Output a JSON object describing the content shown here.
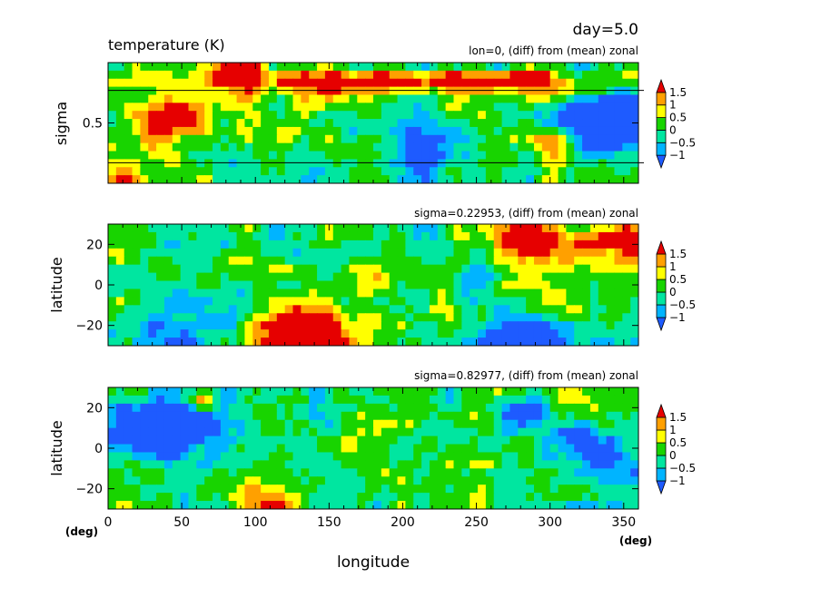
{
  "header": {
    "day_label": "day=5.0",
    "title": "temperature (K)"
  },
  "chart_data": [
    {
      "type": "heatmap",
      "subtitle": "lon=0, (diff) from (mean) zonal",
      "ylabel": "sigma",
      "yticks": [
        {
          "value": 0.5,
          "label": "0.5"
        }
      ],
      "ylim": [
        0.0,
        1.0
      ],
      "xlim": [
        0,
        360
      ],
      "reference_lines_sigma": [
        0.23,
        0.83
      ],
      "colorbar": {
        "levels": [
          "1.5",
          "1",
          "0.5",
          "0",
          "−0.5",
          "−1"
        ]
      }
    },
    {
      "type": "heatmap",
      "subtitle": "sigma=0.22953, (diff) from (mean) zonal",
      "ylabel": "latitude",
      "yticks": [
        {
          "value": 20,
          "label": "20"
        },
        {
          "value": 0,
          "label": "0"
        },
        {
          "value": -20,
          "label": "−20"
        }
      ],
      "ylim": [
        -30,
        30
      ],
      "xlim": [
        0,
        360
      ],
      "colorbar": {
        "levels": [
          "1.5",
          "1",
          "0.5",
          "0",
          "−0.5",
          "−1"
        ]
      }
    },
    {
      "type": "heatmap",
      "subtitle": "sigma=0.82977, (diff) from (mean) zonal",
      "ylabel": "latitude",
      "yticks": [
        {
          "value": 20,
          "label": "20"
        },
        {
          "value": 0,
          "label": "0"
        },
        {
          "value": -20,
          "label": "−20"
        }
      ],
      "ylim": [
        -30,
        30
      ],
      "xlim": [
        0,
        360
      ],
      "colorbar": {
        "levels": [
          "1.5",
          "1",
          "0.5",
          "0",
          "−0.5",
          "−1"
        ]
      }
    }
  ],
  "x_axis": {
    "label": "longitude",
    "unit_left": "(deg)",
    "unit_right": "(deg)",
    "ticks": [
      {
        "value": 0,
        "label": "0"
      },
      {
        "value": 50,
        "label": "50"
      },
      {
        "value": 100,
        "label": "100"
      },
      {
        "value": 150,
        "label": "150"
      },
      {
        "value": 200,
        "label": "200"
      },
      {
        "value": 250,
        "label": "250"
      },
      {
        "value": 300,
        "label": "300"
      },
      {
        "value": 350,
        "label": "350"
      }
    ]
  },
  "colors": {
    "below_min": "#1e5bff",
    "levels": [
      "#1e5bff",
      "#00b4ff",
      "#00e6a0",
      "#18d400",
      "#ffff00",
      "#ffa000",
      "#e60000"
    ],
    "above_max": "#e60000"
  }
}
